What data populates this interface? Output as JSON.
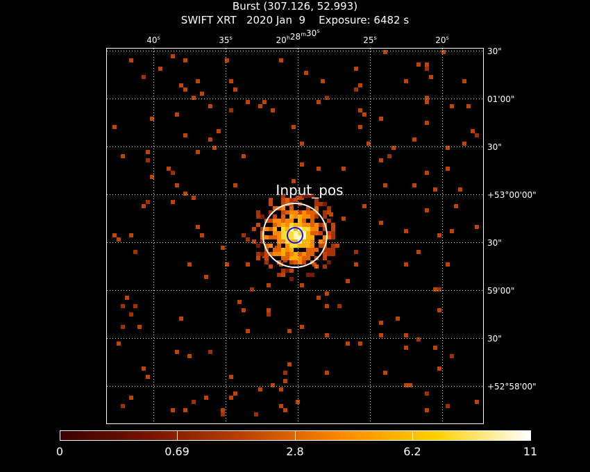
{
  "title": "Burst (307.126, 52.993)",
  "subtitle": "SWIFT XRT   2020 Jan  9    Exposure: 6482 s",
  "ra_labels": [
    {
      "h": "",
      "m": "",
      "s": "40"
    },
    {
      "h": "",
      "m": "",
      "s": "35"
    },
    {
      "h": "20",
      "m": "28",
      "s": "30"
    },
    {
      "h": "",
      "m": "",
      "s": "25"
    },
    {
      "h": "",
      "m": "",
      "s": "20"
    }
  ],
  "dec_labels": [
    {
      "d": "",
      "m": "",
      "s": "30\""
    },
    {
      "d": "",
      "m": "01'",
      "s": "00\""
    },
    {
      "d": "",
      "m": "",
      "s": "30\""
    },
    {
      "d": "+53°",
      "m": "00'",
      "s": "00\""
    },
    {
      "d": "",
      "m": "",
      "s": "30\""
    },
    {
      "d": "",
      "m": "59'",
      "s": "00\""
    },
    {
      "d": "",
      "m": "",
      "s": "30\""
    },
    {
      "d": "+52°",
      "m": "58'",
      "s": "00\""
    }
  ],
  "source_label": "Input_pos",
  "colorbar": {
    "tick_labels": [
      "0",
      "0.69",
      "2.8",
      "6.2",
      "11"
    ],
    "colors": [
      "#3b0000",
      "#7a1500",
      "#c04300",
      "#ff8a00",
      "#ffd000",
      "#ffffff"
    ]
  },
  "colors": {
    "background": "#000000",
    "grid": "#ffffff",
    "source_circle": "#ffffff",
    "error_circle": "#1010ff"
  }
}
